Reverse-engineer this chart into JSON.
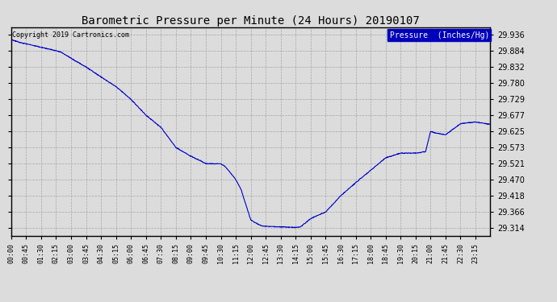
{
  "title": "Barometric Pressure per Minute (24 Hours) 20190107",
  "copyright": "Copyright 2019 Cartronics.com",
  "legend_label": "Pressure  (Inches/Hg)",
  "legend_bg": "#0000BB",
  "legend_fg": "#FFFFFF",
  "line_color": "#0000CC",
  "background_color": "#DCDCDC",
  "grid_color": "#AAAAAA",
  "yticks": [
    29.314,
    29.366,
    29.418,
    29.47,
    29.521,
    29.573,
    29.625,
    29.677,
    29.729,
    29.78,
    29.832,
    29.884,
    29.936
  ],
  "ylim": [
    29.29,
    29.96
  ],
  "waypoints_min": [
    0,
    30,
    60,
    90,
    120,
    135,
    150,
    180,
    225,
    270,
    315,
    360,
    405,
    450,
    495,
    540,
    570,
    585,
    600,
    630,
    645,
    660,
    675,
    690,
    720,
    750,
    765,
    810,
    855,
    870,
    900,
    945,
    990,
    1035,
    1080,
    1125,
    1170,
    1215,
    1245,
    1260,
    1275,
    1305,
    1350,
    1395,
    1439
  ],
  "waypoints_val": [
    29.92,
    29.91,
    29.903,
    29.895,
    29.888,
    29.884,
    29.88,
    29.86,
    29.832,
    29.8,
    29.769,
    29.728,
    29.677,
    29.638,
    29.573,
    29.545,
    29.53,
    29.521,
    29.521,
    29.521,
    29.51,
    29.49,
    29.47,
    29.44,
    29.34,
    29.322,
    29.32,
    29.318,
    29.316,
    29.318,
    29.345,
    29.366,
    29.418,
    29.46,
    29.5,
    29.54,
    29.555,
    29.555,
    29.56,
    29.625,
    29.62,
    29.614,
    29.65,
    29.655,
    29.648
  ]
}
